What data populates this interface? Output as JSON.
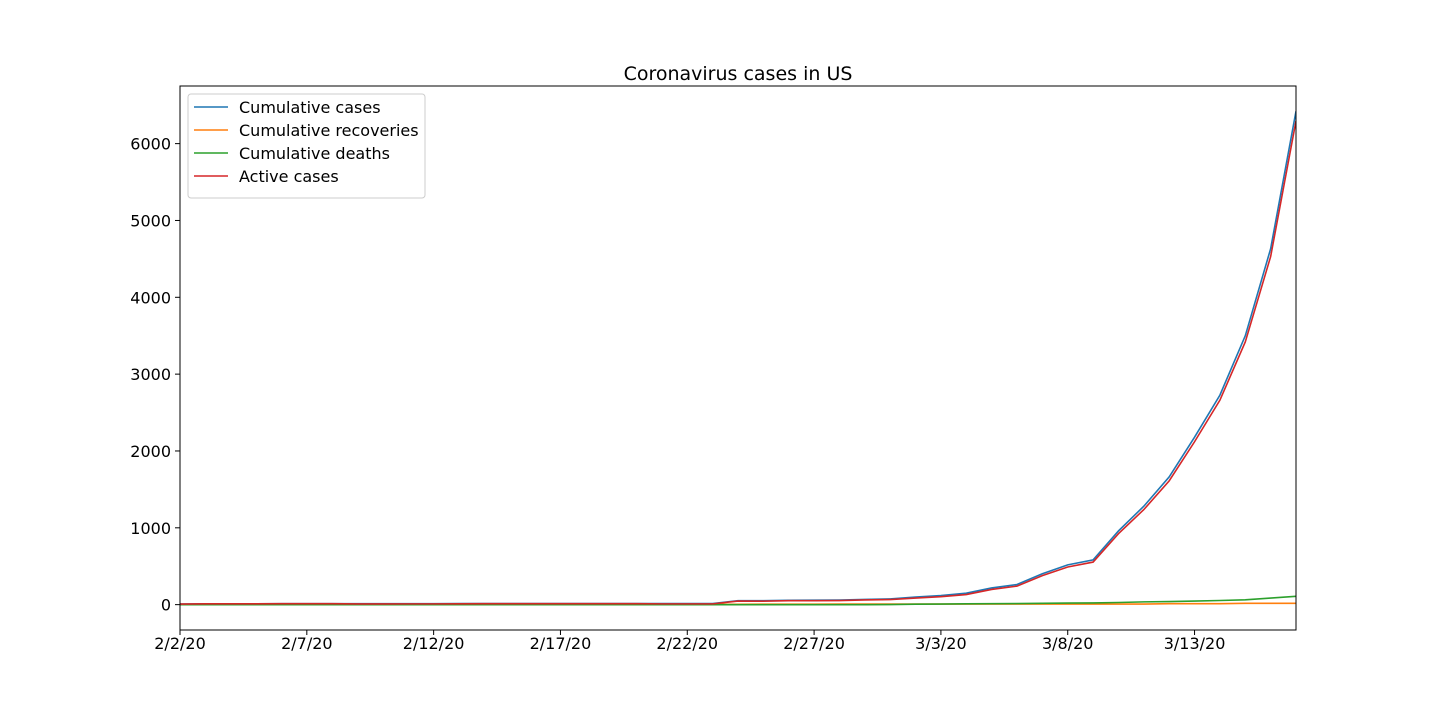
{
  "chart_data": {
    "type": "line",
    "title": "Coronavirus cases in US",
    "xlabel": "",
    "ylabel": "",
    "x": [
      "2/2/20",
      "2/3/20",
      "2/4/20",
      "2/5/20",
      "2/6/20",
      "2/7/20",
      "2/8/20",
      "2/9/20",
      "2/10/20",
      "2/11/20",
      "2/12/20",
      "2/13/20",
      "2/14/20",
      "2/15/20",
      "2/16/20",
      "2/17/20",
      "2/18/20",
      "2/19/20",
      "2/20/20",
      "2/21/20",
      "2/22/20",
      "2/23/20",
      "2/24/20",
      "2/25/20",
      "2/26/20",
      "2/27/20",
      "2/28/20",
      "2/29/20",
      "3/1/20",
      "3/2/20",
      "3/3/20",
      "3/4/20",
      "3/5/20",
      "3/6/20",
      "3/7/20",
      "3/8/20",
      "3/9/20",
      "3/10/20",
      "3/11/20",
      "3/12/20",
      "3/13/20",
      "3/14/20",
      "3/15/20",
      "3/16/20",
      "3/17/20"
    ],
    "xticks": [
      "2/2/20",
      "2/7/20",
      "2/12/20",
      "2/17/20",
      "2/22/20",
      "2/27/20",
      "3/3/20",
      "3/8/20",
      "3/13/20"
    ],
    "yticks": [
      0,
      1000,
      2000,
      3000,
      4000,
      5000,
      6000
    ],
    "xlim": [
      "2/2/20",
      "3/17/20"
    ],
    "ylim": [
      -330,
      6750
    ],
    "legend_position": "top-left",
    "grid": false,
    "series": [
      {
        "name": "Cumulative cases",
        "color": "#1f77b4",
        "values": [
          8,
          11,
          11,
          11,
          12,
          12,
          12,
          12,
          12,
          13,
          13,
          14,
          15,
          15,
          15,
          15,
          15,
          15,
          15,
          15,
          15,
          15,
          51,
          51,
          57,
          58,
          60,
          68,
          74,
          98,
          118,
          149,
          217,
          262,
          402,
          518,
          583,
          959,
          1281,
          1663,
          2179,
          2727,
          3499,
          4632,
          6421
        ]
      },
      {
        "name": "Cumulative recoveries",
        "color": "#ff7f0e",
        "values": [
          0,
          0,
          0,
          0,
          0,
          0,
          0,
          3,
          3,
          3,
          3,
          3,
          3,
          3,
          3,
          3,
          3,
          3,
          3,
          5,
          5,
          5,
          5,
          6,
          6,
          6,
          7,
          7,
          7,
          7,
          7,
          7,
          7,
          7,
          7,
          7,
          7,
          8,
          8,
          12,
          12,
          12,
          17,
          17,
          17
        ]
      },
      {
        "name": "Cumulative deaths",
        "color": "#2ca02c",
        "values": [
          0,
          0,
          0,
          0,
          0,
          0,
          0,
          0,
          0,
          0,
          0,
          0,
          0,
          0,
          0,
          0,
          0,
          0,
          0,
          0,
          0,
          0,
          0,
          0,
          0,
          0,
          0,
          0,
          1,
          6,
          7,
          11,
          12,
          14,
          17,
          21,
          22,
          28,
          36,
          40,
          47,
          54,
          63,
          85,
          108
        ]
      },
      {
        "name": "Active cases",
        "color": "#d62728",
        "values": [
          8,
          11,
          11,
          11,
          12,
          12,
          12,
          9,
          9,
          10,
          10,
          11,
          12,
          12,
          12,
          12,
          12,
          12,
          12,
          10,
          10,
          10,
          46,
          45,
          51,
          52,
          53,
          61,
          66,
          85,
          104,
          131,
          198,
          241,
          378,
          490,
          554,
          923,
          1237,
          1611,
          2120,
          2661,
          3419,
          4530,
          6296
        ]
      }
    ]
  }
}
